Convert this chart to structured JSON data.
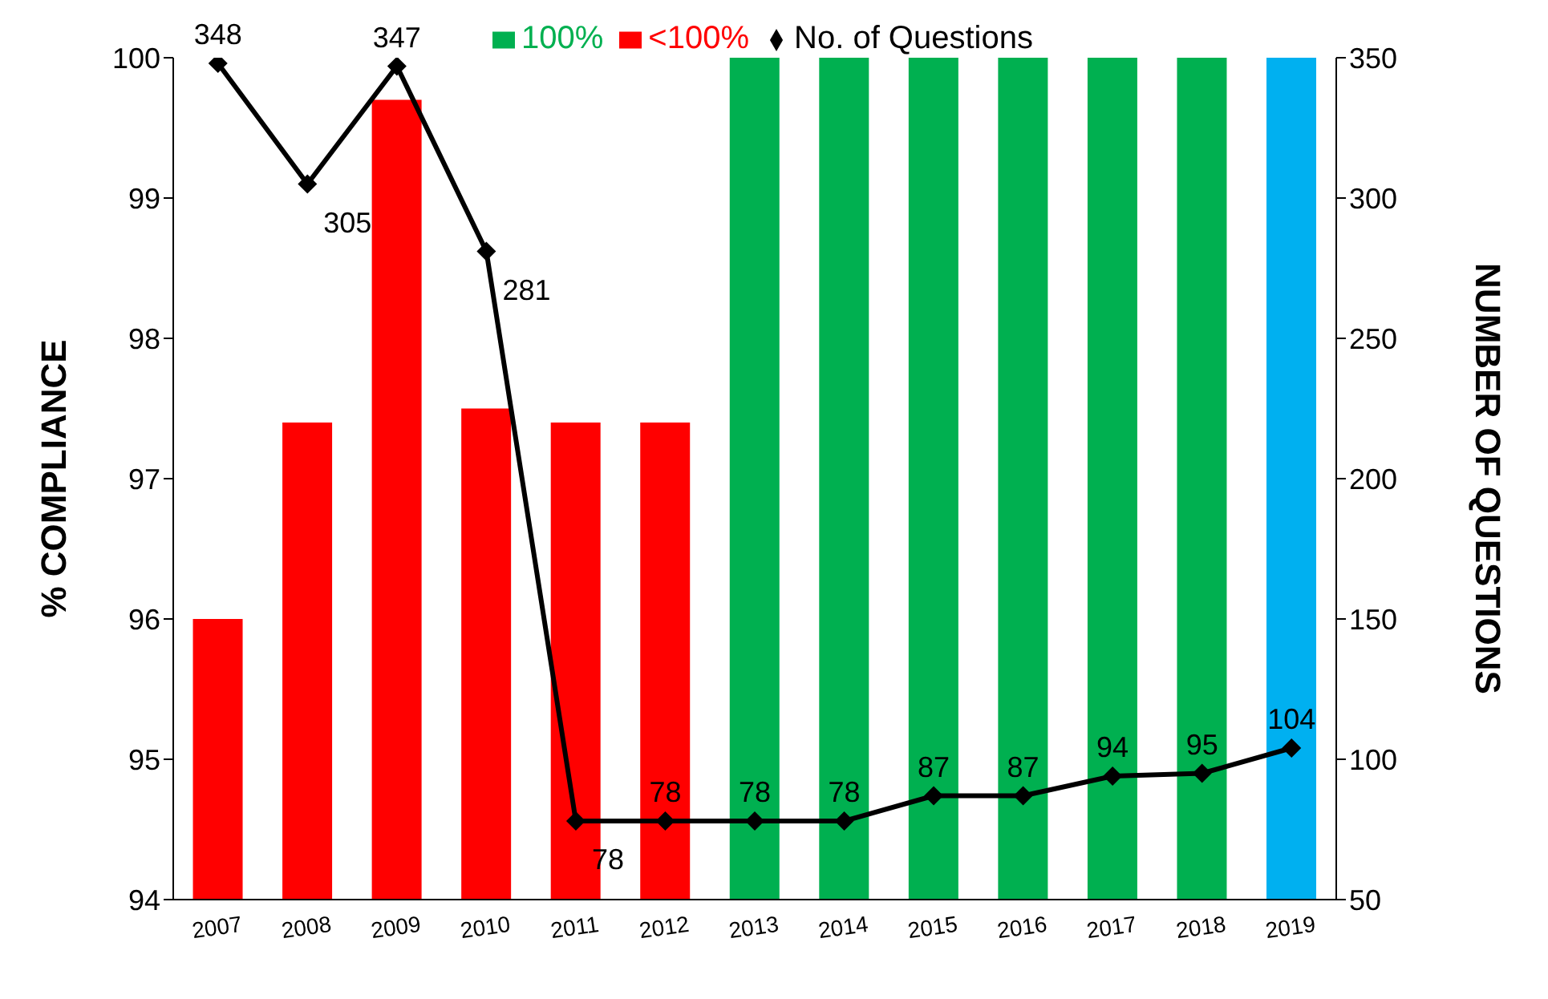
{
  "chart_data": {
    "type": "bar",
    "stacked": true,
    "categories": [
      "2007",
      "2008",
      "2009",
      "2010",
      "2011",
      "2012",
      "2013",
      "2014",
      "2015",
      "2016",
      "2017",
      "2018",
      "2019"
    ],
    "series": [
      {
        "name": "<100%",
        "color": "#ff0000",
        "values": [
          96.0,
          97.4,
          99.7,
          97.5,
          97.4,
          97.4,
          null,
          null,
          null,
          null,
          null,
          null,
          null
        ]
      },
      {
        "name": "100%",
        "color": "#00b050",
        "values": [
          null,
          null,
          null,
          null,
          null,
          null,
          100,
          100,
          100,
          100,
          100,
          100,
          null
        ]
      },
      {
        "color": "#00b0f0",
        "values": [
          null,
          null,
          null,
          null,
          null,
          null,
          null,
          null,
          null,
          null,
          null,
          null,
          100
        ]
      },
      {
        "name": "No. of Questions",
        "type": "line",
        "axis": "y2",
        "color": "#000000",
        "marker": "diamond",
        "values": [
          348,
          305,
          347,
          281,
          78,
          78,
          78,
          78,
          87,
          87,
          94,
          95,
          104
        ],
        "value_labels": [
          "348",
          "305",
          "347",
          "281",
          "78",
          "78",
          "78",
          "78",
          "87",
          "87",
          "94",
          "95",
          "104"
        ]
      }
    ],
    "ylabel": "% COMPLIANCE",
    "y2label": "NUMBER OF QUESTIONS",
    "ylim": [
      94,
      100
    ],
    "yticks": [
      94,
      95,
      96,
      97,
      98,
      99,
      100
    ],
    "y2lim": [
      50,
      350
    ],
    "y2ticks": [
      50,
      100,
      150,
      200,
      250,
      300,
      350
    ],
    "legend": "top",
    "grid": false
  }
}
